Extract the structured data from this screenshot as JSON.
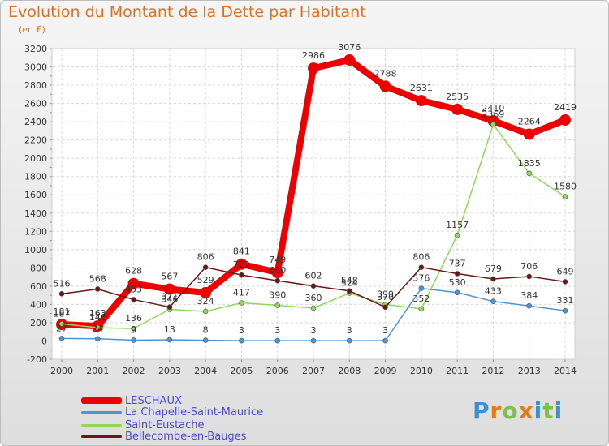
{
  "title": "Evolution du Montant de la Dette par Habitant",
  "subtitle": "(en €)",
  "logo": {
    "text": "Proxiti",
    "colors": [
      "#3a8fd9",
      "#e07b1a",
      "#7cc24a",
      "#e07b1a",
      "#3a8fd9",
      "#7cc24a",
      "#3a8fd9"
    ]
  },
  "chart_data": {
    "type": "line",
    "x": [
      "2000",
      "2001",
      "2002",
      "2003",
      "2004",
      "2005",
      "2006",
      "2007",
      "2008",
      "2009",
      "2010",
      "2011",
      "2012",
      "2013",
      "2014"
    ],
    "ylim": [
      -200,
      3200
    ],
    "yticks": [
      -200,
      0,
      200,
      400,
      600,
      800,
      1000,
      1200,
      1400,
      1600,
      1800,
      2000,
      2200,
      2400,
      2600,
      2800,
      3000,
      3200
    ],
    "grid": true,
    "legend_position": "bottom-left",
    "series": [
      {
        "name": "LESCHAUX",
        "color": "#ee0000",
        "width": 8,
        "marker": 7,
        "values": [
          181,
          163,
          628,
          567,
          529,
          841,
          749,
          2986,
          3076,
          2788,
          2631,
          2535,
          2410,
          2264,
          2419
        ],
        "labels": [
          "181",
          "163",
          "628",
          "567",
          "529",
          "841",
          "749",
          "2986",
          "3076",
          "2788",
          "2631",
          "2535",
          "2410",
          "2264",
          "2419"
        ]
      },
      {
        "name": "La Chapelle-Saint-Maurice",
        "color": "#4f94d3",
        "width": 1.5,
        "marker": 3,
        "values": [
          27,
          24,
          9,
          13,
          8,
          3,
          3,
          3,
          3,
          3,
          576,
          530,
          433,
          384,
          331
        ],
        "labels": [
          "27",
          "24",
          "9",
          "13",
          "8",
          "3",
          "3",
          "3",
          "3",
          "3",
          "576",
          "530",
          "433",
          "384",
          "331"
        ]
      },
      {
        "name": "Saint-Eustache",
        "color": "#8fd85a",
        "width": 1.5,
        "marker": 3,
        "values": [
          187,
          146,
          136,
          346,
          324,
          417,
          390,
          360,
          524,
          399,
          352,
          1157,
          2369,
          1835,
          1580
        ],
        "labels": [
          "187",
          "146",
          "136",
          "346",
          "324",
          "417",
          "390",
          "360",
          "524",
          "399",
          "352",
          "1157",
          "2369",
          "1835",
          "1580"
        ]
      },
      {
        "name": "Bellecombe-en-Bauges",
        "color": "#6b1616",
        "width": 1.5,
        "marker": 3,
        "values": [
          516,
          568,
          453,
          371,
          806,
          722,
          660,
          602,
          548,
          370,
          806,
          737,
          679,
          706,
          649
        ],
        "labels": [
          "516",
          "568",
          "453",
          "371",
          "806",
          "722",
          "660",
          "602",
          "548",
          "370",
          "806",
          "737",
          "679",
          "706",
          "649"
        ]
      }
    ]
  }
}
